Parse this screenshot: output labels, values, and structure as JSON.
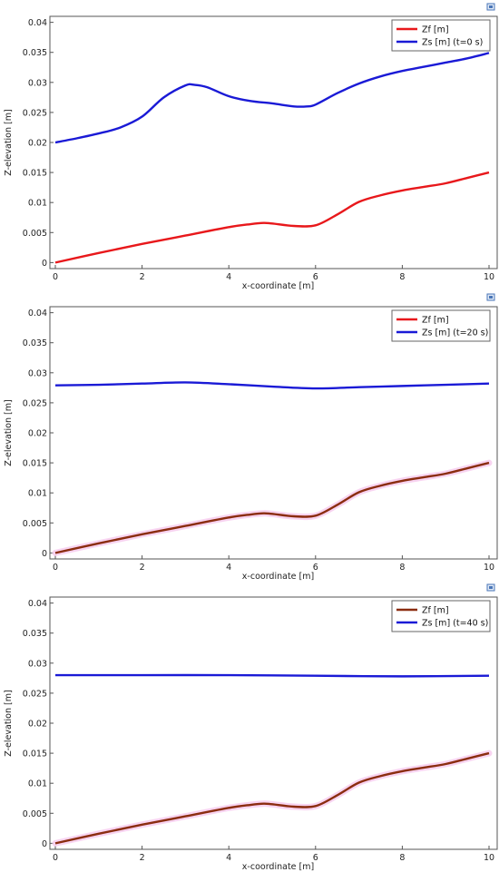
{
  "chart_data": [
    {
      "type": "line",
      "xlabel": "x-coordinate [m]",
      "ylabel": "Z-elevation [m]",
      "xlim": [
        0,
        10
      ],
      "ylim": [
        -0.001,
        0.041
      ],
      "xticks": [
        "0",
        "2",
        "4",
        "6",
        "8",
        "10"
      ],
      "yticks": [
        "0",
        "0.005",
        "0.01",
        "0.015",
        "0.02",
        "0.025",
        "0.03",
        "0.035",
        "0.04"
      ],
      "legend_position": "top-right",
      "grid": false,
      "series": [
        {
          "name": "Zf [m]",
          "color": "#e8181b",
          "x": [
            0,
            1,
            2,
            3,
            4,
            4.5,
            4.8,
            5,
            5.5,
            6,
            6.5,
            7,
            7.5,
            8,
            8.5,
            9,
            9.5,
            10
          ],
          "y": [
            0,
            0.0016,
            0.0031,
            0.0045,
            0.0059,
            0.0064,
            0.0066,
            0.0065,
            0.0061,
            0.0062,
            0.008,
            0.0101,
            0.0112,
            0.012,
            0.0126,
            0.0132,
            0.0141,
            0.015
          ]
        },
        {
          "name": "Zs [m] (t=0 s)",
          "color": "#1a1ad6",
          "x": [
            0,
            0.5,
            1,
            1.5,
            2,
            2.5,
            3,
            3.2,
            3.5,
            4,
            4.5,
            5,
            5.5,
            5.8,
            6,
            6.5,
            7,
            7.5,
            8,
            8.5,
            9,
            9.5,
            10
          ],
          "y": [
            0.02,
            0.0207,
            0.0215,
            0.0225,
            0.0243,
            0.0275,
            0.0295,
            0.0296,
            0.0292,
            0.0277,
            0.0269,
            0.0265,
            0.026,
            0.026,
            0.0263,
            0.0282,
            0.0298,
            0.031,
            0.0319,
            0.0326,
            0.0333,
            0.034,
            0.0349
          ]
        }
      ]
    },
    {
      "type": "line",
      "xlabel": "x-coordinate [m]",
      "ylabel": "Z-elevation [m]",
      "xlim": [
        0,
        10
      ],
      "ylim": [
        -0.001,
        0.041
      ],
      "xticks": [
        "0",
        "2",
        "4",
        "6",
        "8",
        "10"
      ],
      "yticks": [
        "0",
        "0.005",
        "0.01",
        "0.015",
        "0.02",
        "0.025",
        "0.03",
        "0.035",
        "0.04"
      ],
      "legend_position": "top-right",
      "grid": false,
      "series": [
        {
          "name": "Zf [m]",
          "color": "#e8181b",
          "draw_color": "#8b2d10",
          "x": [
            0,
            1,
            2,
            3,
            4,
            4.5,
            4.8,
            5,
            5.5,
            6,
            6.5,
            7,
            7.5,
            8,
            8.5,
            9,
            9.5,
            10
          ],
          "y": [
            0,
            0.0016,
            0.0031,
            0.0045,
            0.0059,
            0.0064,
            0.0066,
            0.0065,
            0.0061,
            0.0062,
            0.008,
            0.0101,
            0.0112,
            0.012,
            0.0126,
            0.0132,
            0.0141,
            0.015
          ]
        },
        {
          "name": "Zs [m] (t=20 s)",
          "color": "#1a1ad6",
          "x": [
            0,
            1,
            2,
            3,
            4,
            5,
            6,
            7,
            8,
            9,
            10
          ],
          "y": [
            0.0279,
            0.028,
            0.0282,
            0.0284,
            0.0281,
            0.0277,
            0.0274,
            0.0276,
            0.0278,
            0.028,
            0.0282
          ]
        }
      ]
    },
    {
      "type": "line",
      "xlabel": "x-coordinate [m]",
      "ylabel": "Z-elevation [m]",
      "xlim": [
        0,
        10
      ],
      "ylim": [
        -0.001,
        0.041
      ],
      "xticks": [
        "0",
        "2",
        "4",
        "6",
        "8",
        "10"
      ],
      "yticks": [
        "0",
        "0.005",
        "0.01",
        "0.015",
        "0.02",
        "0.025",
        "0.03",
        "0.035",
        "0.04"
      ],
      "legend_position": "top-right",
      "grid": false,
      "series": [
        {
          "name": "Zf [m]",
          "color": "#8b2d10",
          "x": [
            0,
            1,
            2,
            3,
            4,
            4.5,
            4.8,
            5,
            5.5,
            6,
            6.5,
            7,
            7.5,
            8,
            8.5,
            9,
            9.5,
            10
          ],
          "y": [
            0,
            0.0016,
            0.0031,
            0.0045,
            0.0059,
            0.0064,
            0.0066,
            0.0065,
            0.0061,
            0.0062,
            0.008,
            0.0101,
            0.0112,
            0.012,
            0.0126,
            0.0132,
            0.0141,
            0.015
          ]
        },
        {
          "name": "Zs [m] (t=40 s)",
          "color": "#1a1ad6",
          "x": [
            0,
            2,
            4,
            6,
            8,
            10
          ],
          "y": [
            0.028,
            0.028,
            0.028,
            0.0279,
            0.0278,
            0.0279
          ]
        }
      ]
    }
  ]
}
